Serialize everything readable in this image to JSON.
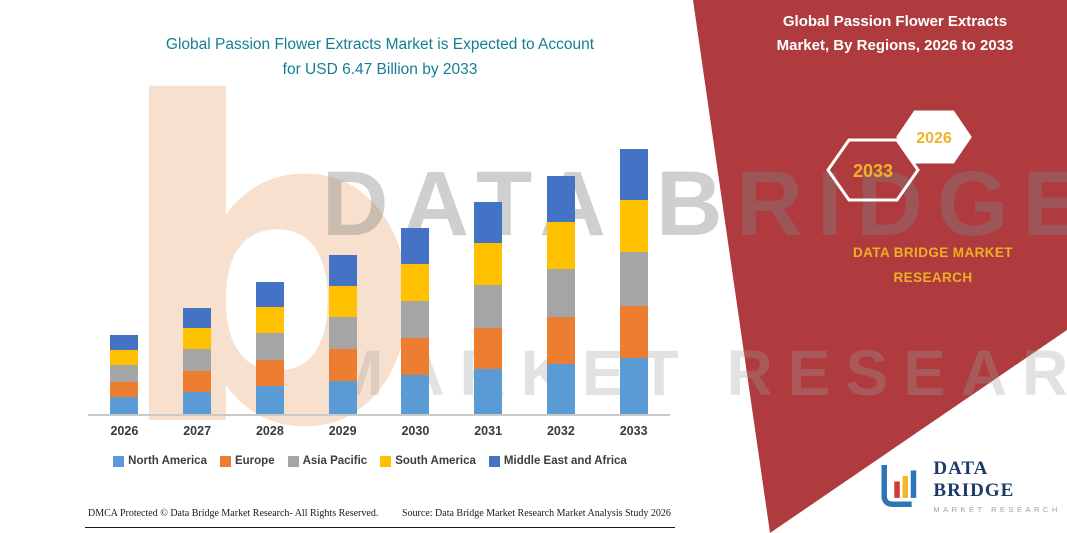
{
  "colors": {
    "banner_red": "#AF3B3E",
    "title_teal": "#137F93",
    "gold": "#EDB024",
    "logo_navy": "#1D3A6B",
    "axis_gray": "#C9C9C9",
    "watermark_peach": "#F8E0CE"
  },
  "header": {
    "title_line1": "Global Passion Flower Extracts Market is Expected to Account",
    "title_line2": "for USD 6.47 Billion by 2033"
  },
  "banner": {
    "title_line1": "Global Passion Flower Extracts",
    "title_line2": "Market, By Regions, 2026 to 2033",
    "hexagon_left": "2033",
    "hexagon_right": "2026",
    "brand_line1": "DATA BRIDGE MARKET",
    "brand_line2": "RESEARCH"
  },
  "watermark": {
    "letter": "b",
    "line1": "DATA BRIDGE",
    "line2": "MARKET RESEARCH"
  },
  "chart_data": {
    "type": "bar",
    "stacked": true,
    "title": "Global Passion Flower Extracts Market is Expected to Account for USD 6.47 Billion by 2033",
    "unit": "USD Billion",
    "categories": [
      "2026",
      "2027",
      "2028",
      "2029",
      "2030",
      "2031",
      "2032",
      "2033"
    ],
    "series": [
      {
        "name": "North America",
        "color": "#5B9BD5",
        "values": [
          0.42,
          0.55,
          0.68,
          0.82,
          0.96,
          1.1,
          1.23,
          1.37
        ]
      },
      {
        "name": "Europe",
        "color": "#ED7D31",
        "values": [
          0.37,
          0.51,
          0.63,
          0.76,
          0.89,
          1.01,
          1.14,
          1.27
        ]
      },
      {
        "name": "Asia Pacific",
        "color": "#A5A5A5",
        "values": [
          0.4,
          0.53,
          0.66,
          0.79,
          0.92,
          1.05,
          1.18,
          1.31
        ]
      },
      {
        "name": "South America",
        "color": "#FFC000",
        "values": [
          0.38,
          0.52,
          0.64,
          0.77,
          0.9,
          1.02,
          1.15,
          1.28
        ]
      },
      {
        "name": "Middle East and Africa",
        "color": "#4472C4",
        "values": [
          0.36,
          0.49,
          0.62,
          0.75,
          0.88,
          1.0,
          1.13,
          1.24
        ]
      }
    ],
    "totals": [
      1.93,
      2.6,
      3.23,
      3.89,
      4.55,
      5.18,
      5.83,
      6.47
    ],
    "ylim": [
      0,
      6.6
    ],
    "grid": false,
    "y_axis_visible": false,
    "legend_position": "bottom"
  },
  "footer": {
    "dmca": "DMCA Protected © Data Bridge Market Research-  All Rights Reserved.",
    "source": "Source: Data Bridge Market Research  Market Analysis Study 2026"
  },
  "logo": {
    "name": "DATA BRIDGE",
    "subtitle": "MARKET RESEARCH"
  }
}
